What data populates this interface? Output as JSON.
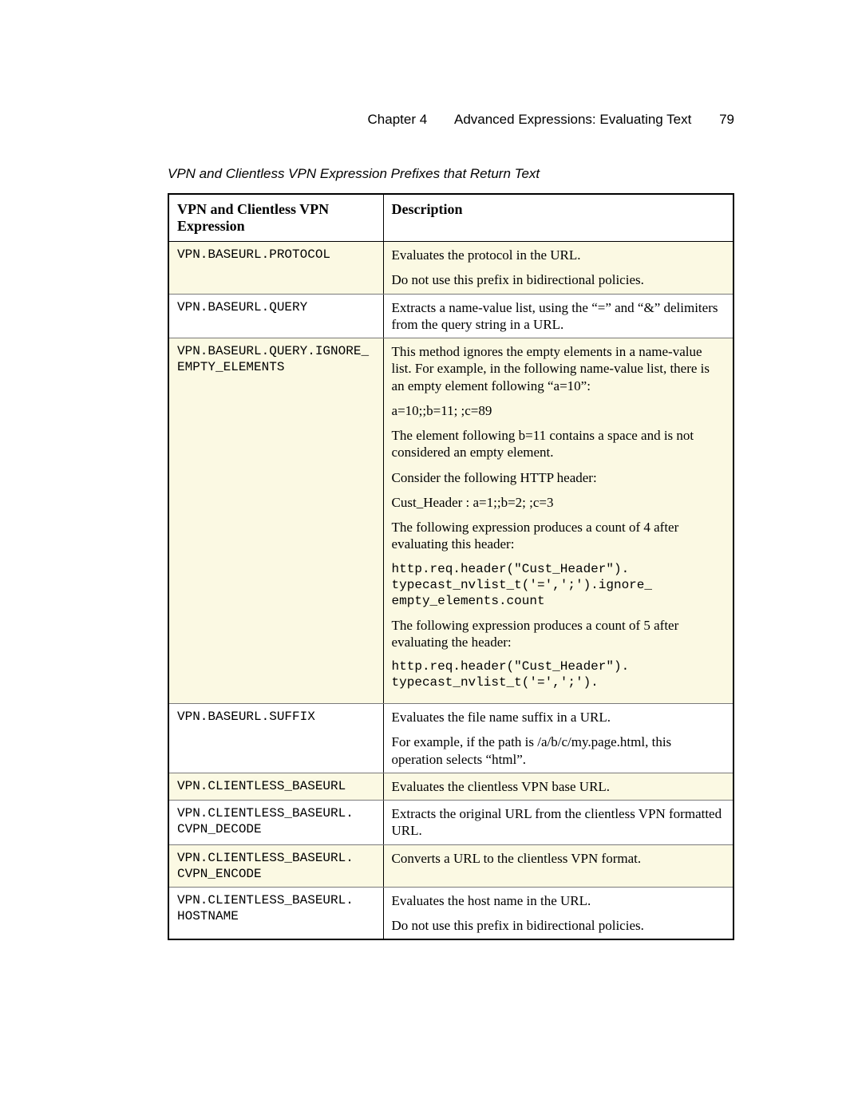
{
  "header": {
    "chapter": "Chapter 4",
    "title": "Advanced Expressions: Evaluating Text",
    "page_number": "79"
  },
  "table_caption": "VPN and Clientless VPN Expression Prefixes that Return Text",
  "columns": {
    "expr": "VPN and Clientless VPN Expression",
    "desc": "Description"
  },
  "rows": [
    {
      "alt": true,
      "expr": "VPN.BASEURL.PROTOCOL",
      "desc": [
        {
          "t": "text",
          "v": "Evaluates the protocol in the URL."
        },
        {
          "t": "text",
          "v": "Do not use this prefix in bidirectional policies."
        }
      ]
    },
    {
      "alt": false,
      "expr": "VPN.BASEURL.QUERY",
      "desc": [
        {
          "t": "text",
          "v": "Extracts a name-value list, using the “=” and “&” delimiters from the query string in a URL."
        }
      ]
    },
    {
      "alt": true,
      "expr": "VPN.BASEURL.QUERY.IGNORE_\nEMPTY_ELEMENTS",
      "desc": [
        {
          "t": "text",
          "v": "This method ignores the empty elements in a name-value list. For example, in the following name-value list, there is an empty element following “a=10”:"
        },
        {
          "t": "text",
          "v": "a=10;;b=11; ;c=89"
        },
        {
          "t": "text",
          "v": "The element following b=11 contains a space and is not considered an empty element."
        },
        {
          "t": "text",
          "v": "Consider the following HTTP header:"
        },
        {
          "t": "text",
          "v": "Cust_Header : a=1;;b=2; ;c=3"
        },
        {
          "t": "text",
          "v": "The following expression produces a count of 4 after evaluating this header:"
        },
        {
          "t": "mono",
          "v": "http.req.header(\"Cust_Header\").\ntypecast_nvlist_t('=',';').ignore_\nempty_elements.count"
        },
        {
          "t": "text",
          "v": "The following expression produces a count of 5 after evaluating the header:"
        },
        {
          "t": "mono",
          "v": "http.req.header(\"Cust_Header\").\ntypecast_nvlist_t('=',';')."
        }
      ]
    },
    {
      "alt": false,
      "expr": "VPN.BASEURL.SUFFIX",
      "desc": [
        {
          "t": "text",
          "v": "Evaluates the file name suffix in a URL."
        },
        {
          "t": "text",
          "v": "For example, if the path is /a/b/c/my.page.html, this operation selects “html”."
        }
      ]
    },
    {
      "alt": true,
      "expr": "VPN.CLIENTLESS_BASEURL",
      "desc": [
        {
          "t": "text",
          "v": "Evaluates the clientless VPN base URL."
        }
      ]
    },
    {
      "alt": false,
      "expr": "VPN.CLIENTLESS_BASEURL.\nCVPN_DECODE",
      "desc": [
        {
          "t": "text",
          "v": "Extracts the original URL from the clientless VPN formatted URL."
        }
      ]
    },
    {
      "alt": true,
      "expr": "VPN.CLIENTLESS_BASEURL.\nCVPN_ENCODE",
      "desc": [
        {
          "t": "text",
          "v": "Converts a URL to the clientless VPN format."
        }
      ]
    },
    {
      "alt": false,
      "expr": "VPN.CLIENTLESS_BASEURL.\nHOSTNAME",
      "desc": [
        {
          "t": "text",
          "v": "Evaluates the host name in the URL."
        },
        {
          "t": "text",
          "v": "Do not use this prefix in bidirectional policies."
        }
      ]
    }
  ]
}
